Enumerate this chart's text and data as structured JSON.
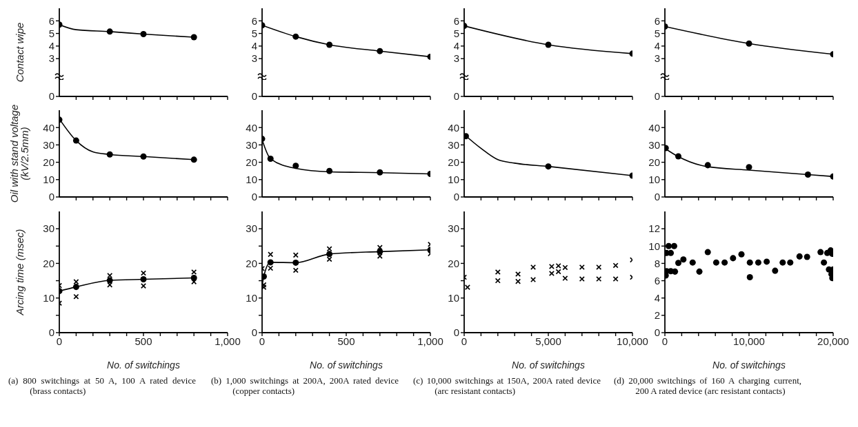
{
  "chart_data": [
    {
      "type": "line",
      "ylabel": "Contact wipe",
      "xlim": [
        0,
        1000
      ],
      "xticks": [
        100,
        200,
        300,
        400,
        500,
        600,
        700,
        800,
        900,
        1000
      ],
      "ylim": [
        0,
        7
      ],
      "yticks": [
        0,
        3,
        4,
        5,
        6
      ],
      "tick_labels": "y",
      "series": [
        {
          "color": "#000000",
          "x": [
            0,
            100,
            300,
            500,
            800
          ],
          "values": [
            5.7,
            5.3,
            5.15,
            4.95,
            4.7
          ]
        },
        {
          "type": "scatter",
          "marker": "circle",
          "color": "#000000",
          "x": [
            0,
            300,
            500,
            800
          ],
          "values": [
            5.7,
            5.15,
            4.95,
            4.7
          ]
        }
      ]
    },
    {
      "type": "line",
      "xlim": [
        0,
        1000
      ],
      "xticks": [
        100,
        200,
        300,
        400,
        500,
        600,
        700,
        800,
        900,
        1000
      ],
      "ylim": [
        0,
        7
      ],
      "yticks": [
        0,
        3,
        4,
        5,
        6
      ],
      "tick_labels": "y",
      "series": [
        {
          "color": "#000000",
          "x": [
            0,
            200,
            400,
            700,
            1000
          ],
          "values": [
            5.65,
            4.75,
            4.1,
            3.6,
            3.15
          ]
        },
        {
          "type": "scatter",
          "marker": "circle",
          "color": "#000000",
          "x": [
            0,
            200,
            400,
            700,
            1000
          ],
          "values": [
            5.65,
            4.75,
            4.1,
            3.6,
            3.15
          ]
        }
      ]
    },
    {
      "type": "line",
      "xlim": [
        0,
        10000
      ],
      "xticks": [
        1000,
        2000,
        3000,
        4000,
        5000,
        6000,
        7000,
        8000,
        9000,
        10000
      ],
      "ylim": [
        0,
        7
      ],
      "yticks": [
        0,
        3,
        4,
        5,
        6
      ],
      "tick_labels": "y",
      "series": [
        {
          "color": "#000000",
          "x": [
            0,
            5000,
            10000
          ],
          "values": [
            5.6,
            4.1,
            3.4
          ]
        },
        {
          "type": "scatter",
          "marker": "circle",
          "color": "#000000",
          "x": [
            0,
            5000,
            10000
          ],
          "values": [
            5.6,
            4.1,
            3.4
          ]
        }
      ]
    },
    {
      "type": "line",
      "xlim": [
        0,
        20000
      ],
      "xticks": [
        2000,
        4000,
        6000,
        8000,
        10000,
        12000,
        14000,
        16000,
        18000,
        20000
      ],
      "ylim": [
        0,
        7
      ],
      "yticks": [
        0,
        3,
        4,
        5,
        6
      ],
      "tick_labels": "y",
      "series": [
        {
          "color": "#000000",
          "x": [
            0,
            10000,
            20000
          ],
          "values": [
            5.55,
            4.2,
            3.35
          ]
        },
        {
          "type": "scatter",
          "marker": "circle",
          "color": "#000000",
          "x": [
            0,
            10000,
            20000
          ],
          "values": [
            5.55,
            4.2,
            3.35
          ]
        }
      ]
    },
    {
      "type": "line",
      "ylabel": "Oil with stand voltage\n(kV/2.5mm)",
      "xlim": [
        0,
        1000
      ],
      "xticks": [
        100,
        200,
        300,
        400,
        500,
        600,
        700,
        800,
        900,
        1000
      ],
      "ylim": [
        0,
        50
      ],
      "yticks": [
        0,
        10,
        20,
        30,
        40
      ],
      "tick_labels": "y",
      "series": [
        {
          "color": "#000000",
          "x": [
            0,
            100,
            200,
            300,
            500,
            800
          ],
          "values": [
            45,
            32.5,
            26,
            24.5,
            23.3,
            21.5
          ]
        },
        {
          "type": "scatter",
          "marker": "circle",
          "color": "#000000",
          "x": [
            0,
            100,
            300,
            500,
            800
          ],
          "values": [
            44.5,
            32.5,
            24.5,
            23.3,
            21.5
          ]
        }
      ]
    },
    {
      "type": "line",
      "xlim": [
        0,
        1000
      ],
      "xticks": [
        100,
        200,
        300,
        400,
        500,
        600,
        700,
        800,
        900,
        1000
      ],
      "ylim": [
        0,
        50
      ],
      "yticks": [
        0,
        10,
        20,
        30,
        40
      ],
      "tick_labels": "y",
      "series": [
        {
          "color": "#000000",
          "x": [
            0,
            50,
            200,
            400,
            700,
            1000
          ],
          "values": [
            33,
            22,
            16.5,
            14.5,
            14,
            13.3
          ]
        },
        {
          "type": "scatter",
          "marker": "circle",
          "color": "#000000",
          "x": [
            0,
            50,
            200,
            400,
            700,
            1000
          ],
          "values": [
            33.5,
            22,
            18,
            15,
            14.2,
            13.3
          ]
        }
      ]
    },
    {
      "type": "line",
      "xlim": [
        0,
        10000
      ],
      "xticks": [
        1000,
        2000,
        3000,
        4000,
        5000,
        6000,
        7000,
        8000,
        9000,
        10000
      ],
      "ylim": [
        0,
        50
      ],
      "yticks": [
        0,
        10,
        20,
        30,
        40
      ],
      "tick_labels": "y",
      "series": [
        {
          "color": "#000000",
          "x": [
            0,
            1000,
            2000,
            3000,
            5000,
            10000
          ],
          "values": [
            36,
            28,
            21.5,
            19.5,
            17.6,
            12.3
          ]
        },
        {
          "type": "scatter",
          "marker": "circle",
          "color": "#000000",
          "x": [
            100,
            5000,
            10000
          ],
          "values": [
            35,
            17.6,
            12.3
          ]
        }
      ]
    },
    {
      "type": "line",
      "xlim": [
        0,
        20000
      ],
      "xticks": [
        2000,
        4000,
        6000,
        8000,
        10000,
        12000,
        14000,
        16000,
        18000,
        20000
      ],
      "ylim": [
        0,
        50
      ],
      "yticks": [
        0,
        10,
        20,
        30,
        40
      ],
      "tick_labels": "y",
      "series": [
        {
          "color": "#000000",
          "x": [
            0,
            1500,
            5000,
            10000,
            17000,
            20000
          ],
          "values": [
            28,
            23.5,
            17.5,
            15.5,
            12.9,
            11.8
          ]
        },
        {
          "type": "scatter",
          "marker": "circle",
          "color": "#000000",
          "x": [
            100,
            1600,
            5100,
            10000,
            17000,
            20000
          ],
          "values": [
            28.2,
            23.4,
            18.3,
            17.2,
            12.9,
            11.8
          ]
        }
      ]
    },
    {
      "type": "line",
      "ylabel": "Arcing time (msec)",
      "xlabel": "No. of switchings",
      "annotations": [
        "(a) 800 switchings at 50 A, 100 A rated device (brass contacts)"
      ],
      "xlim": [
        0,
        1000
      ],
      "xticks": [
        0,
        {
          "value": 100,
          "label": null
        },
        {
          "value": 200,
          "label": null
        },
        {
          "value": 300,
          "label": null
        },
        {
          "value": 400,
          "label": null
        },
        500,
        {
          "value": 600,
          "label": null
        },
        {
          "value": 700,
          "label": null
        },
        {
          "value": 800,
          "label": null
        },
        {
          "value": 900,
          "label": null
        },
        {
          "value": 1000,
          "label": "1,000"
        }
      ],
      "ylim": [
        0,
        35
      ],
      "yticks": [
        0,
        {
          "value": 5,
          "label": null
        },
        10,
        {
          "value": 15,
          "label": null
        },
        20,
        {
          "value": 25,
          "label": null
        },
        30
      ],
      "series": [
        {
          "color": "#000000",
          "x": [
            0,
            100,
            300,
            500,
            800
          ],
          "values": [
            12,
            13.2,
            15.1,
            15.4,
            15.8
          ]
        },
        {
          "type": "scatter",
          "marker": "circle",
          "color": "#000000",
          "x": [
            0,
            100,
            300,
            500,
            800
          ],
          "values": [
            12,
            13.2,
            15.1,
            15.4,
            15.8
          ]
        },
        {
          "type": "scatter",
          "marker": "cross",
          "color": "#000000",
          "x": [
            0,
            0,
            100,
            100,
            300,
            300,
            500,
            500,
            800,
            800
          ],
          "values": [
            13.6,
            8.5,
            14.7,
            10.4,
            16.5,
            13.8,
            17.2,
            13.5,
            17.5,
            14.7
          ]
        }
      ]
    },
    {
      "type": "line",
      "xlabel": "No. of switchings",
      "annotations": [
        "(b) 1,000 switchings at 200A, 200A rated device (copper contacts)"
      ],
      "xlim": [
        0,
        1000
      ],
      "xticks": [
        0,
        {
          "value": 100,
          "label": null
        },
        {
          "value": 200,
          "label": null
        },
        {
          "value": 300,
          "label": null
        },
        {
          "value": 400,
          "label": null
        },
        500,
        {
          "value": 600,
          "label": null
        },
        {
          "value": 700,
          "label": null
        },
        {
          "value": 800,
          "label": null
        },
        {
          "value": 900,
          "label": null
        },
        {
          "value": 1000,
          "label": "1,000"
        }
      ],
      "ylim": [
        0,
        35
      ],
      "yticks": [
        0,
        {
          "value": 5,
          "label": null
        },
        10,
        {
          "value": 15,
          "label": null
        },
        20,
        {
          "value": 25,
          "label": null
        },
        30
      ],
      "series": [
        {
          "color": "#000000",
          "x": [
            0,
            10,
            50,
            200,
            400,
            700,
            1000
          ],
          "values": [
            13.5,
            16.2,
            20.3,
            20.2,
            22.7,
            23.4,
            23.9
          ]
        },
        {
          "type": "scatter",
          "marker": "circle",
          "color": "#000000",
          "x": [
            10,
            50,
            200,
            400,
            700,
            1000
          ],
          "values": [
            16.2,
            20.3,
            20.2,
            22.7,
            23.4,
            23.9
          ]
        },
        {
          "type": "scatter",
          "marker": "cross",
          "color": "#000000",
          "x": [
            0,
            10,
            10,
            50,
            50,
            200,
            200,
            400,
            400,
            700,
            700,
            1000,
            1000
          ],
          "values": [
            18.5,
            13.8,
            13.1,
            22.6,
            18.6,
            22.4,
            18,
            24.2,
            21.2,
            24.6,
            22.1,
            25.5,
            22.8
          ]
        }
      ]
    },
    {
      "type": "scatter",
      "xlabel": "No. of switchings",
      "annotations": [
        "(c) 10,000 switchings at 150A, 200A rated device (arc resistant contacts)"
      ],
      "xlim": [
        0,
        10000
      ],
      "xticks": [
        0,
        {
          "value": 1000,
          "label": null
        },
        {
          "value": 2000,
          "label": null
        },
        {
          "value": 3000,
          "label": null
        },
        {
          "value": 4000,
          "label": null
        },
        {
          "value": 5000,
          "label": "5,000"
        },
        {
          "value": 6000,
          "label": null
        },
        {
          "value": 7000,
          "label": null
        },
        {
          "value": 8000,
          "label": null
        },
        {
          "value": 9000,
          "label": null
        },
        {
          "value": 10000,
          "label": "10,000"
        }
      ],
      "ylim": [
        0,
        35
      ],
      "yticks": [
        0,
        {
          "value": 5,
          "label": null
        },
        10,
        {
          "value": 15,
          "label": null
        },
        20,
        {
          "value": 25,
          "label": null
        },
        30
      ],
      "series": [
        {
          "marker": "cross",
          "color": "#000000",
          "x": [
            0,
            200,
            2000,
            2000,
            3200,
            3200,
            4100,
            4100,
            5200,
            5200,
            5600,
            5600,
            6000,
            6000,
            7000,
            7000,
            8000,
            8000,
            9000,
            9000,
            10000,
            10000
          ],
          "values": [
            16,
            13.1,
            17.5,
            15,
            16.9,
            14.8,
            18.9,
            15.3,
            19.1,
            17.1,
            19.3,
            17.6,
            18.8,
            15.7,
            18.9,
            15.5,
            18.9,
            15.5,
            19.4,
            15.5,
            21,
            16
          ]
        }
      ]
    },
    {
      "type": "scatter",
      "xlabel": "No. of switchings",
      "annotations": [
        "(d) 20,000 switchings of 160 A charging current, 200 A rated device (arc resistant contacts)"
      ],
      "xlim": [
        0,
        20000
      ],
      "xticks": [
        0,
        {
          "value": 2000,
          "label": null
        },
        {
          "value": 4000,
          "label": null
        },
        {
          "value": 6000,
          "label": null
        },
        {
          "value": 8000,
          "label": null
        },
        {
          "value": 10000,
          "label": "10,000"
        },
        {
          "value": 12000,
          "label": null
        },
        {
          "value": 14000,
          "label": null
        },
        {
          "value": 16000,
          "label": null
        },
        {
          "value": 18000,
          "label": null
        },
        {
          "value": 20000,
          "label": "20,000"
        }
      ],
      "ylim": [
        0,
        14
      ],
      "yticks": [
        0,
        2,
        4,
        6,
        8,
        10,
        12
      ],
      "series": [
        {
          "marker": "circle",
          "color": "#000000",
          "x": [
            100,
            200,
            450,
            700,
            200,
            700,
            1100,
            1200,
            1600,
            2200,
            3300,
            4100,
            5100,
            6100,
            7100,
            8100,
            9100,
            10100,
            10100,
            11100,
            12100,
            13100,
            14000,
            14900,
            16000,
            16900,
            18500,
            18900,
            19300,
            19700,
            19900,
            19500,
            20000,
            19800,
            19900
          ],
          "values": [
            6.6,
            9.2,
            10,
            9.2,
            7.1,
            7.1,
            10,
            7.05,
            8.05,
            8.45,
            8.1,
            7.05,
            9.3,
            8.1,
            8.1,
            8.6,
            9.05,
            8.1,
            6.4,
            8.1,
            8.2,
            7.15,
            8.1,
            8.1,
            8.8,
            8.75,
            9.3,
            8.1,
            9.2,
            9.5,
            9.1,
            7.3,
            7.3,
            6.75,
            6.3
          ]
        }
      ]
    }
  ]
}
